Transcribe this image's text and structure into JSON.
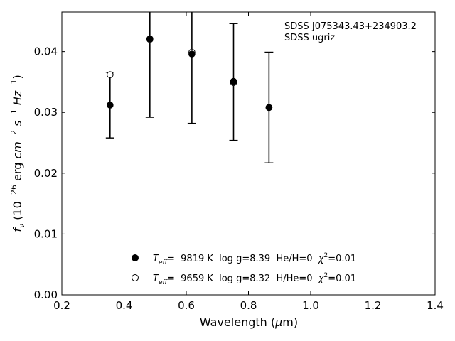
{
  "chart_data": {
    "type": "scatter",
    "xlabel_prefix": "Wavelength (",
    "xlabel_mu": "μ",
    "xlabel_suffix": "m)",
    "ylabel_f": "f",
    "ylabel_nu": "ν",
    "ylabel_paren": " (10",
    "ylabel_exp1": "−26",
    "ylabel_erg": " erg ",
    "ylabel_cm": "cm",
    "ylabel_exp2": "−2",
    "ylabel_s": " s",
    "ylabel_exp3": "−1",
    "ylabel_hz": " Hz",
    "ylabel_exp4": "−1",
    "ylabel_close": ")",
    "xlim": [
      0.2,
      1.4
    ],
    "ylim": [
      0.0,
      0.0465
    ],
    "xticks": [
      "0.2",
      "0.4",
      "0.6",
      "0.8",
      "1.0",
      "1.2",
      "1.4"
    ],
    "yticks": [
      "0.00",
      "0.01",
      "0.02",
      "0.03",
      "0.04"
    ],
    "annotation": [
      "SDSS J075343.43+234903.2",
      "SDSS ugriz"
    ],
    "observed": {
      "x": [
        0.355,
        0.483,
        0.618,
        0.752,
        0.866
      ],
      "y": [
        0.0312,
        0.0421,
        0.0397,
        0.035,
        0.0308
      ],
      "yerr": [
        0.0054,
        0.0129,
        0.0115,
        0.0096,
        0.0091
      ]
    },
    "series": [
      {
        "x": [
          0.355,
          0.483,
          0.618,
          0.752,
          0.866
        ],
        "y": [
          0.0312,
          0.0421,
          0.0396,
          0.0351,
          0.0308
        ],
        "marker": "filled",
        "color": "#000000"
      },
      {
        "x": [
          0.355,
          0.483,
          0.618,
          0.752,
          0.866
        ],
        "y": [
          0.0362,
          0.042,
          0.0399,
          0.0349,
          0.0308
        ],
        "marker": "open",
        "color": "#000000"
      }
    ],
    "legend": {
      "placement": "lower-center",
      "entries": [
        {
          "teff_t": "T",
          "teff_sub": "eff",
          "text": "=  9819 K  log g=8.39  He/H=0  ",
          "chi": "χ",
          "chi_exp": "2",
          "chi_val": "=0.01"
        },
        {
          "teff_t": "T",
          "teff_sub": "eff",
          "text": "=  9659 K  log g=8.32  H/He=0  ",
          "chi": "χ",
          "chi_exp": "2",
          "chi_val": "=0.01"
        }
      ]
    }
  }
}
